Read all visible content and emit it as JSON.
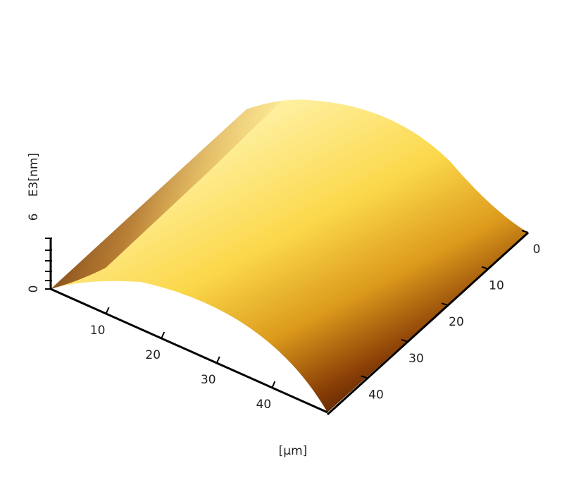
{
  "chart_data": {
    "type": "surface",
    "zlabel": "E3[nm]",
    "xlabel": "[µm]",
    "zlim": [
      0,
      6
    ],
    "zticks": [
      0,
      6
    ],
    "xlim": [
      0,
      50
    ],
    "xticks": [
      10,
      20,
      30,
      40
    ],
    "ylim": [
      0,
      50
    ],
    "yticks": [
      0,
      10,
      20,
      30,
      40
    ]
  }
}
